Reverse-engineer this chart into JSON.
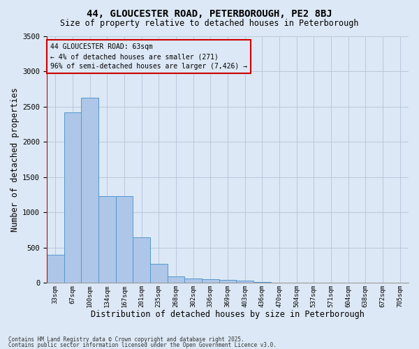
{
  "title": "44, GLOUCESTER ROAD, PETERBOROUGH, PE2 8BJ",
  "subtitle": "Size of property relative to detached houses in Peterborough",
  "xlabel": "Distribution of detached houses by size in Peterborough",
  "ylabel": "Number of detached properties",
  "footnote1": "Contains HM Land Registry data © Crown copyright and database right 2025.",
  "footnote2": "Contains public sector information licensed under the Open Government Licence v3.0.",
  "annotation_title": "44 GLOUCESTER ROAD: 63sqm",
  "annotation_line2": "← 4% of detached houses are smaller (271)",
  "annotation_line3": "96% of semi-detached houses are larger (7,426) →",
  "bar_values": [
    400,
    2420,
    2620,
    1230,
    1230,
    650,
    270,
    90,
    65,
    55,
    45,
    30,
    15,
    0,
    0,
    0,
    0,
    0,
    0,
    0,
    0
  ],
  "categories": [
    "33sqm",
    "67sqm",
    "100sqm",
    "134sqm",
    "167sqm",
    "201sqm",
    "235sqm",
    "268sqm",
    "302sqm",
    "336sqm",
    "369sqm",
    "403sqm",
    "436sqm",
    "470sqm",
    "504sqm",
    "537sqm",
    "571sqm",
    "604sqm",
    "638sqm",
    "672sqm",
    "705sqm"
  ],
  "bar_color": "#aec6e8",
  "bar_edge_color": "#5599cc",
  "marker_line_color": "#cc0000",
  "background_color": "#dce8f5",
  "grid_color": "#b8c8dc",
  "ylim": [
    0,
    3500
  ],
  "yticks": [
    0,
    500,
    1000,
    1500,
    2000,
    2500,
    3000,
    3500
  ],
  "annotation_box_edge_color": "#cc0000",
  "figsize": [
    6.0,
    5.0
  ],
  "dpi": 100
}
